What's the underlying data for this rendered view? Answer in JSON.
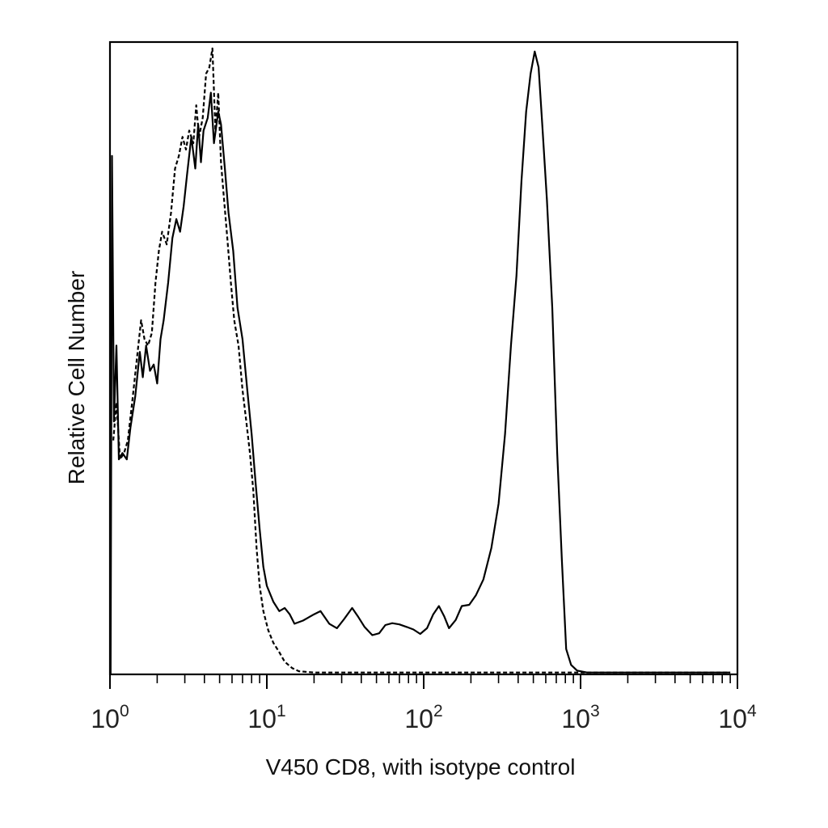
{
  "chart_data": {
    "type": "line",
    "title": "",
    "xlabel": "V450 CD8, with isotype control",
    "ylabel": "Relative Cell Number",
    "x_scale": "log",
    "xlim": [
      1,
      10000
    ],
    "ylim": [
      0,
      100
    ],
    "grid": false,
    "legend": "none",
    "x_ticks": [
      {
        "base": "10",
        "exp": "0",
        "value": 1
      },
      {
        "base": "10",
        "exp": "1",
        "value": 10
      },
      {
        "base": "10",
        "exp": "2",
        "value": 100
      },
      {
        "base": "10",
        "exp": "3",
        "value": 1000
      },
      {
        "base": "10",
        "exp": "4",
        "value": 10000
      }
    ],
    "series": [
      {
        "style": "solid",
        "color": "#000000",
        "points": [
          [
            1.01,
            0
          ],
          [
            1.03,
            82
          ],
          [
            1.06,
            40
          ],
          [
            1.1,
            52
          ],
          [
            1.14,
            34
          ],
          [
            1.2,
            35
          ],
          [
            1.28,
            34
          ],
          [
            1.35,
            39
          ],
          [
            1.45,
            44
          ],
          [
            1.55,
            51
          ],
          [
            1.62,
            47
          ],
          [
            1.7,
            52
          ],
          [
            1.8,
            48
          ],
          [
            1.9,
            49
          ],
          [
            2.0,
            46
          ],
          [
            2.1,
            53
          ],
          [
            2.2,
            56
          ],
          [
            2.35,
            62
          ],
          [
            2.5,
            69
          ],
          [
            2.65,
            72
          ],
          [
            2.8,
            70
          ],
          [
            2.95,
            74
          ],
          [
            3.1,
            79
          ],
          [
            3.3,
            85
          ],
          [
            3.5,
            80
          ],
          [
            3.65,
            87
          ],
          [
            3.8,
            81
          ],
          [
            3.95,
            86
          ],
          [
            4.2,
            88
          ],
          [
            4.4,
            92
          ],
          [
            4.6,
            84
          ],
          [
            4.9,
            89
          ],
          [
            5.1,
            87
          ],
          [
            5.4,
            80
          ],
          [
            5.7,
            73
          ],
          [
            6.1,
            67
          ],
          [
            6.5,
            58
          ],
          [
            7.0,
            53
          ],
          [
            7.5,
            45
          ],
          [
            8.0,
            38
          ],
          [
            8.5,
            30
          ],
          [
            9.0,
            23
          ],
          [
            9.5,
            17
          ],
          [
            10.0,
            14
          ],
          [
            11,
            11.5
          ],
          [
            12,
            10
          ],
          [
            13,
            10.5
          ],
          [
            14,
            9.5
          ],
          [
            15,
            8
          ],
          [
            17,
            8.5
          ],
          [
            20,
            9.5
          ],
          [
            22,
            10
          ],
          [
            25,
            8
          ],
          [
            28,
            7.3
          ],
          [
            31,
            8.7
          ],
          [
            35,
            10.5
          ],
          [
            38,
            9.2
          ],
          [
            42,
            7.5
          ],
          [
            47,
            6.2
          ],
          [
            52,
            6.5
          ],
          [
            57,
            7.8
          ],
          [
            63,
            8.1
          ],
          [
            70,
            7.9
          ],
          [
            78,
            7.5
          ],
          [
            86,
            7.1
          ],
          [
            95,
            6.4
          ],
          [
            105,
            7.3
          ],
          [
            115,
            9.5
          ],
          [
            125,
            10.8
          ],
          [
            135,
            9.2
          ],
          [
            145,
            7.3
          ],
          [
            160,
            8.6
          ],
          [
            175,
            10.8
          ],
          [
            195,
            11
          ],
          [
            215,
            12.5
          ],
          [
            240,
            15
          ],
          [
            270,
            20
          ],
          [
            300,
            27
          ],
          [
            330,
            38
          ],
          [
            360,
            52
          ],
          [
            390,
            63
          ],
          [
            420,
            78
          ],
          [
            450,
            89
          ],
          [
            480,
            95
          ],
          [
            510,
            98.5
          ],
          [
            540,
            96
          ],
          [
            570,
            87
          ],
          [
            610,
            75
          ],
          [
            660,
            58
          ],
          [
            710,
            35
          ],
          [
            760,
            18
          ],
          [
            810,
            4
          ],
          [
            870,
            1.5
          ],
          [
            950,
            0.6
          ],
          [
            1100,
            0.3
          ],
          [
            1500,
            0.3
          ],
          [
            3000,
            0.3
          ],
          [
            9000,
            0.3
          ]
        ]
      },
      {
        "style": "dashed",
        "color": "#000000",
        "points": [
          [
            1.05,
            37
          ],
          [
            1.1,
            43
          ],
          [
            1.16,
            34
          ],
          [
            1.23,
            35
          ],
          [
            1.3,
            37
          ],
          [
            1.4,
            44
          ],
          [
            1.5,
            51
          ],
          [
            1.58,
            56
          ],
          [
            1.66,
            53
          ],
          [
            1.75,
            52
          ],
          [
            1.85,
            54
          ],
          [
            1.95,
            62
          ],
          [
            2.05,
            67
          ],
          [
            2.15,
            70
          ],
          [
            2.3,
            68
          ],
          [
            2.45,
            73
          ],
          [
            2.6,
            80
          ],
          [
            2.75,
            82
          ],
          [
            2.9,
            85
          ],
          [
            3.05,
            83
          ],
          [
            3.2,
            86
          ],
          [
            3.4,
            84
          ],
          [
            3.55,
            90
          ],
          [
            3.7,
            85
          ],
          [
            3.9,
            88
          ],
          [
            4.1,
            95
          ],
          [
            4.3,
            96
          ],
          [
            4.5,
            99
          ],
          [
            4.7,
            86
          ],
          [
            4.9,
            92
          ],
          [
            5.1,
            81
          ],
          [
            5.3,
            76
          ],
          [
            5.6,
            69
          ],
          [
            5.9,
            62
          ],
          [
            6.2,
            56
          ],
          [
            6.6,
            52
          ],
          [
            7.0,
            45
          ],
          [
            7.4,
            40
          ],
          [
            7.8,
            35
          ],
          [
            8.2,
            29
          ],
          [
            8.6,
            20
          ],
          [
            9.0,
            14
          ],
          [
            9.5,
            10
          ],
          [
            10.2,
            7
          ],
          [
            11,
            5
          ],
          [
            12,
            3.5
          ],
          [
            13,
            2
          ],
          [
            14.5,
            1
          ],
          [
            16,
            0.5
          ],
          [
            20,
            0.3
          ],
          [
            50,
            0.3
          ],
          [
            200,
            0.3
          ],
          [
            1000,
            0.3
          ],
          [
            9000,
            0.3
          ]
        ]
      }
    ]
  }
}
